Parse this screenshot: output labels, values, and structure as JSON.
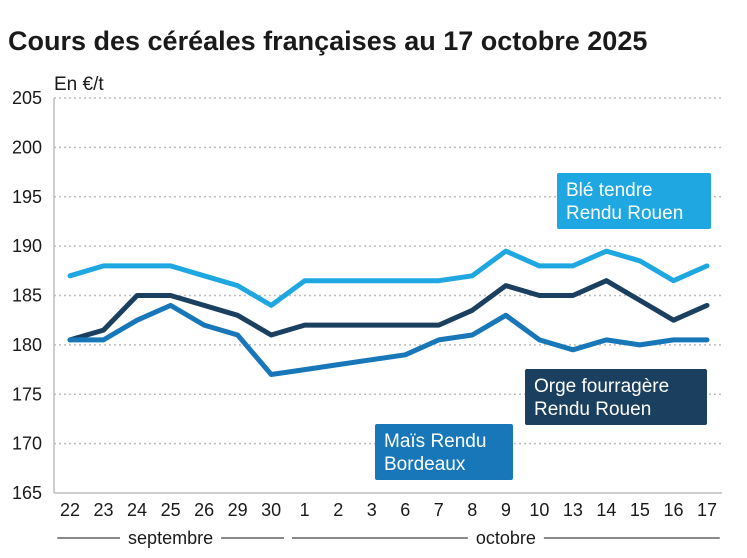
{
  "chart_data": {
    "type": "line",
    "title": "Cours des céréales françaises au 17 octobre 2025",
    "ylabel": "En €/t",
    "ylim": [
      165,
      205
    ],
    "yticks": [
      165,
      170,
      175,
      180,
      185,
      190,
      195,
      200,
      205
    ],
    "grid": true,
    "categories": [
      "22",
      "23",
      "24",
      "25",
      "26",
      "29",
      "30",
      "1",
      "2",
      "3",
      "6",
      "7",
      "8",
      "9",
      "10",
      "13",
      "14",
      "15",
      "16",
      "17"
    ],
    "month_groups": [
      {
        "label": "septembre",
        "start": 0,
        "end": 6
      },
      {
        "label": "octobre",
        "start": 7,
        "end": 19
      }
    ],
    "series": [
      {
        "name": "Blé tendre Rendu Rouen",
        "label_lines": [
          "Blé tendre",
          "Rendu Rouen"
        ],
        "color": "#1ea7e1",
        "values": [
          187,
          188,
          188,
          188,
          187,
          186,
          184,
          186.5,
          186.5,
          186.5,
          186.5,
          186.5,
          187,
          189.5,
          188,
          188,
          189.5,
          188.5,
          186.5,
          188
        ]
      },
      {
        "name": "Orge fourragère Rendu Rouen",
        "label_lines": [
          "Orge fourragère",
          "Rendu Rouen"
        ],
        "color": "#1b3f5e",
        "values": [
          180.5,
          181.5,
          185,
          185,
          184,
          183,
          181,
          182,
          182,
          182,
          182,
          182,
          183.5,
          186,
          185,
          185,
          186.5,
          184.5,
          182.5,
          184
        ]
      },
      {
        "name": "Maïs Rendu Bordeaux",
        "label_lines": [
          "Maïs Rendu",
          "Bordeaux"
        ],
        "color": "#1777b9",
        "values": [
          180.5,
          180.5,
          182.5,
          184,
          182,
          181,
          177,
          177.5,
          178,
          178.5,
          179,
          180.5,
          181,
          183,
          180.5,
          179.5,
          180.5,
          180,
          180.5,
          180.5
        ]
      }
    ]
  }
}
